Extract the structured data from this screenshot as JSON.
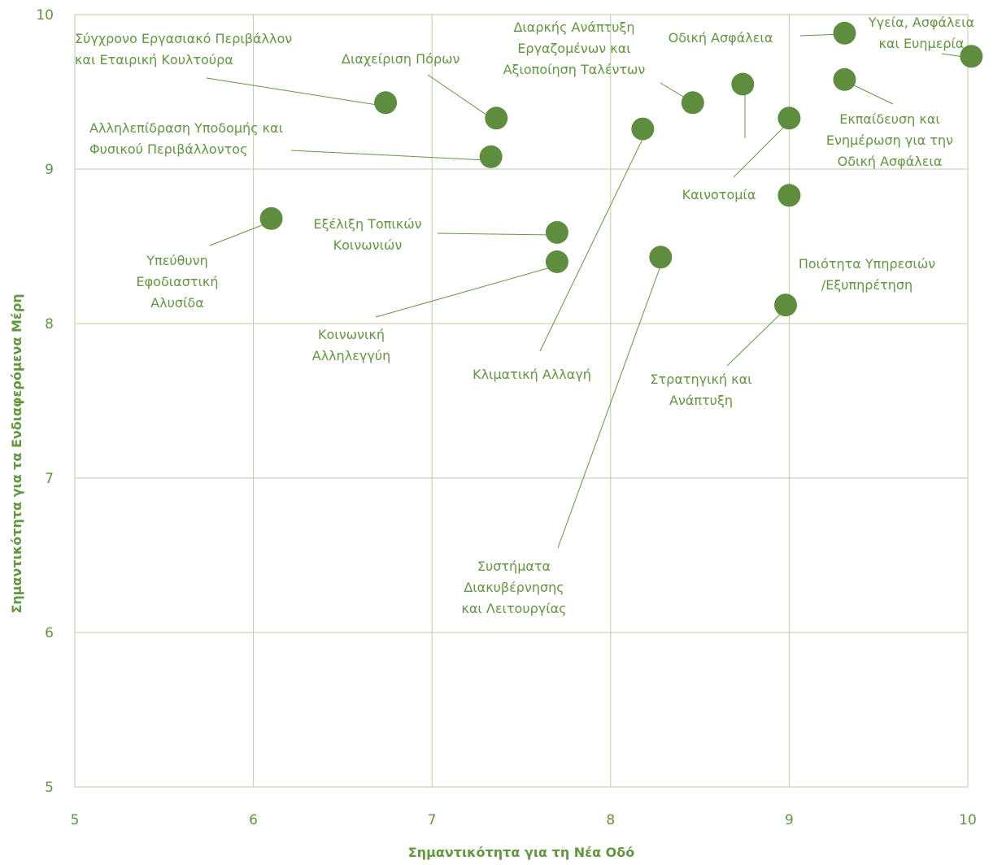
{
  "chart_data": {
    "type": "scatter",
    "xlabel": "Σημαντικότητα για τη Νέα Οδό",
    "ylabel": "Σημαντικότητα για τα Ενδιαφερόμενα Μέρη",
    "xlim": [
      5,
      10
    ],
    "ylim": [
      5,
      10
    ],
    "xticks": [
      "5",
      "6",
      "7",
      "8",
      "9",
      "10"
    ],
    "yticks": [
      "5",
      "6",
      "7",
      "8",
      "9",
      "10"
    ],
    "grid": true,
    "colors": {
      "point": "#5f8d3e",
      "text": "#5f9a3a",
      "grid": "#b9cfa6"
    },
    "points": [
      {
        "x": 6.74,
        "y": 9.43,
        "label": [
          "Σύγχρονο Εργασιακό Περιβάλλον",
          "και Εταιρική Κουλτούρα"
        ]
      },
      {
        "x": 7.36,
        "y": 9.33,
        "label": [
          "Διαχείριση Πόρων"
        ]
      },
      {
        "x": 7.33,
        "y": 9.08,
        "label": [
          "Αλληλεπίδραση Υποδομής και",
          "Φυσικού Περιβάλλοντος"
        ]
      },
      {
        "x": 6.1,
        "y": 8.68,
        "label": [
          "Υπεύθυνη",
          "Εφοδιαστική",
          "Αλυσίδα"
        ]
      },
      {
        "x": 7.7,
        "y": 8.59,
        "label": [
          "Εξέλιξη Τοπικών",
          "Κοινωνιών"
        ]
      },
      {
        "x": 7.7,
        "y": 8.4,
        "label": [
          "Κοινωνική",
          "Αλληλεγγύη"
        ]
      },
      {
        "x": 8.18,
        "y": 9.26,
        "label": [
          "Κλιματική Αλλαγή"
        ]
      },
      {
        "x": 8.28,
        "y": 8.43,
        "label": [
          "Συστήματα",
          "Διακυβέρνησης",
          "και Λειτουργίας"
        ]
      },
      {
        "x": 8.46,
        "y": 9.43,
        "label": [
          "Διαρκής Ανάπτυξη",
          "Εργαζομένων και",
          "Αξιοποίηση Ταλέντων"
        ]
      },
      {
        "x": 8.74,
        "y": 9.55,
        "label": [
          "Οδική Ασφάλεια"
        ]
      },
      {
        "x": 9.0,
        "y": 9.33,
        "label": [
          "Καινοτομία"
        ]
      },
      {
        "x": 9.0,
        "y": 8.83,
        "label": [
          "Ποιότητα Υπηρεσιών",
          "/Εξυπηρέτηση"
        ]
      },
      {
        "x": 8.98,
        "y": 8.12,
        "label": [
          "Στρατηγική και",
          "Ανάπτυξη"
        ]
      },
      {
        "x": 9.31,
        "y": 9.88,
        "label": []
      },
      {
        "x": 10.02,
        "y": 9.73,
        "label": [
          "Υγεία, Ασφάλεια",
          "και Ευημερία"
        ]
      },
      {
        "x": 9.31,
        "y": 9.58,
        "label": [
          "Εκπαίδευση και",
          "Ενημέρωση για την",
          "Οδική Ασφάλεια"
        ]
      }
    ]
  }
}
